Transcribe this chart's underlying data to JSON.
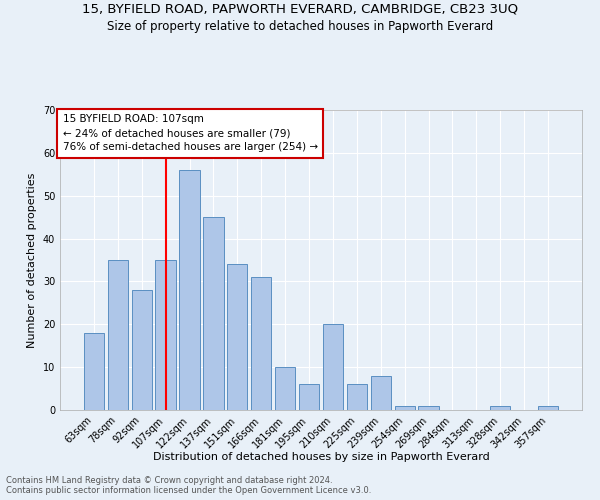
{
  "title": "15, BYFIELD ROAD, PAPWORTH EVERARD, CAMBRIDGE, CB23 3UQ",
  "subtitle": "Size of property relative to detached houses in Papworth Everard",
  "xlabel": "Distribution of detached houses by size in Papworth Everard",
  "ylabel": "Number of detached properties",
  "categories": [
    "63sqm",
    "78sqm",
    "92sqm",
    "107sqm",
    "122sqm",
    "137sqm",
    "151sqm",
    "166sqm",
    "181sqm",
    "195sqm",
    "210sqm",
    "225sqm",
    "239sqm",
    "254sqm",
    "269sqm",
    "284sqm",
    "313sqm",
    "328sqm",
    "342sqm",
    "357sqm"
  ],
  "values": [
    18,
    35,
    28,
    35,
    56,
    45,
    34,
    31,
    10,
    6,
    20,
    6,
    8,
    1,
    1,
    0,
    0,
    1,
    0,
    1
  ],
  "bar_color": "#aec6e8",
  "bar_edge_color": "#5a8fc2",
  "red_line_index": 3,
  "red_line_label": "15 BYFIELD ROAD: 107sqm",
  "annotation_line2": "← 24% of detached houses are smaller (79)",
  "annotation_line3": "76% of semi-detached houses are larger (254) →",
  "annotation_box_color": "#ffffff",
  "annotation_box_edge_color": "#cc0000",
  "ylim": [
    0,
    70
  ],
  "yticks": [
    0,
    10,
    20,
    30,
    40,
    50,
    60,
    70
  ],
  "background_color": "#e8f0f8",
  "grid_color": "#ffffff",
  "footer_line1": "Contains HM Land Registry data © Crown copyright and database right 2024.",
  "footer_line2": "Contains public sector information licensed under the Open Government Licence v3.0.",
  "title_fontsize": 9.5,
  "subtitle_fontsize": 8.5,
  "tick_fontsize": 7,
  "ylabel_fontsize": 8,
  "xlabel_fontsize": 8,
  "annotation_fontsize": 7.5,
  "footer_fontsize": 6
}
